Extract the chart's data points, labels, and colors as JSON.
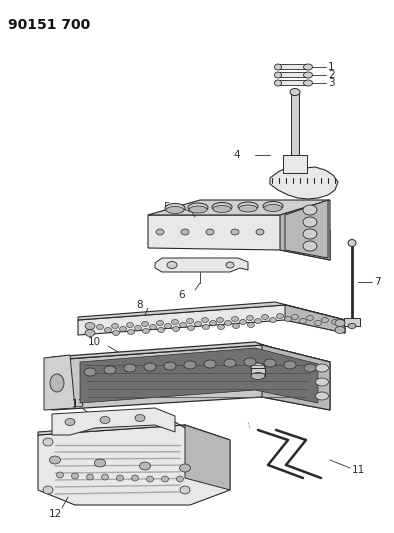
{
  "title": "90151 700",
  "bg_color": "#ffffff",
  "line_color": "#2a2a2a",
  "title_fontsize": 10,
  "label_fontsize": 7.5,
  "figsize": [
    3.94,
    5.33
  ],
  "dpi": 100,
  "face_light": "#e8e8e8",
  "face_mid": "#d0d0d0",
  "face_dark": "#b8b8b8",
  "face_darker": "#a0a0a0"
}
